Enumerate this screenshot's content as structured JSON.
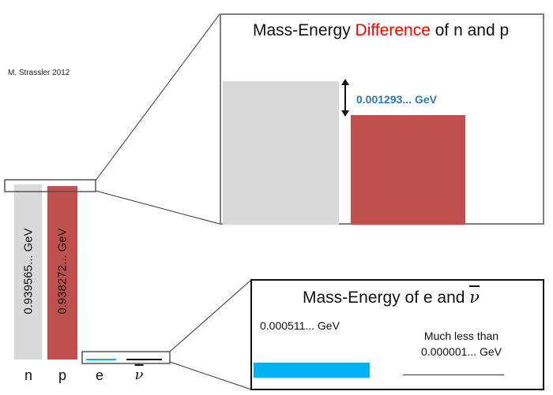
{
  "credit": "M. Strassler 2012",
  "colors": {
    "neutron": "#d9d9d9",
    "proton": "#c0504d",
    "electron": "#00b0f0",
    "antineutrino": "#111111",
    "highlight": "#ff0000",
    "value_label": "#2e75b6"
  },
  "particles": {
    "n": {
      "label": "n",
      "value_label": "0.939565... GeV"
    },
    "p": {
      "label": "p",
      "value_label": "0.938272... GeV"
    },
    "e": {
      "label": "e"
    },
    "nubar": {
      "label": "ν"
    }
  },
  "panel_top": {
    "title_prefix": "Mass-Energy ",
    "title_highlight": "Difference",
    "title_suffix": " of n and p",
    "difference_label": "0.001293... GeV"
  },
  "panel_bottom": {
    "title_prefix": "Mass-Energy of e and ",
    "title_symbol": "ν",
    "electron_value": "0.000511... GeV",
    "neutrino_line1": "Much less than",
    "neutrino_line2": "0.000001... GeV"
  }
}
